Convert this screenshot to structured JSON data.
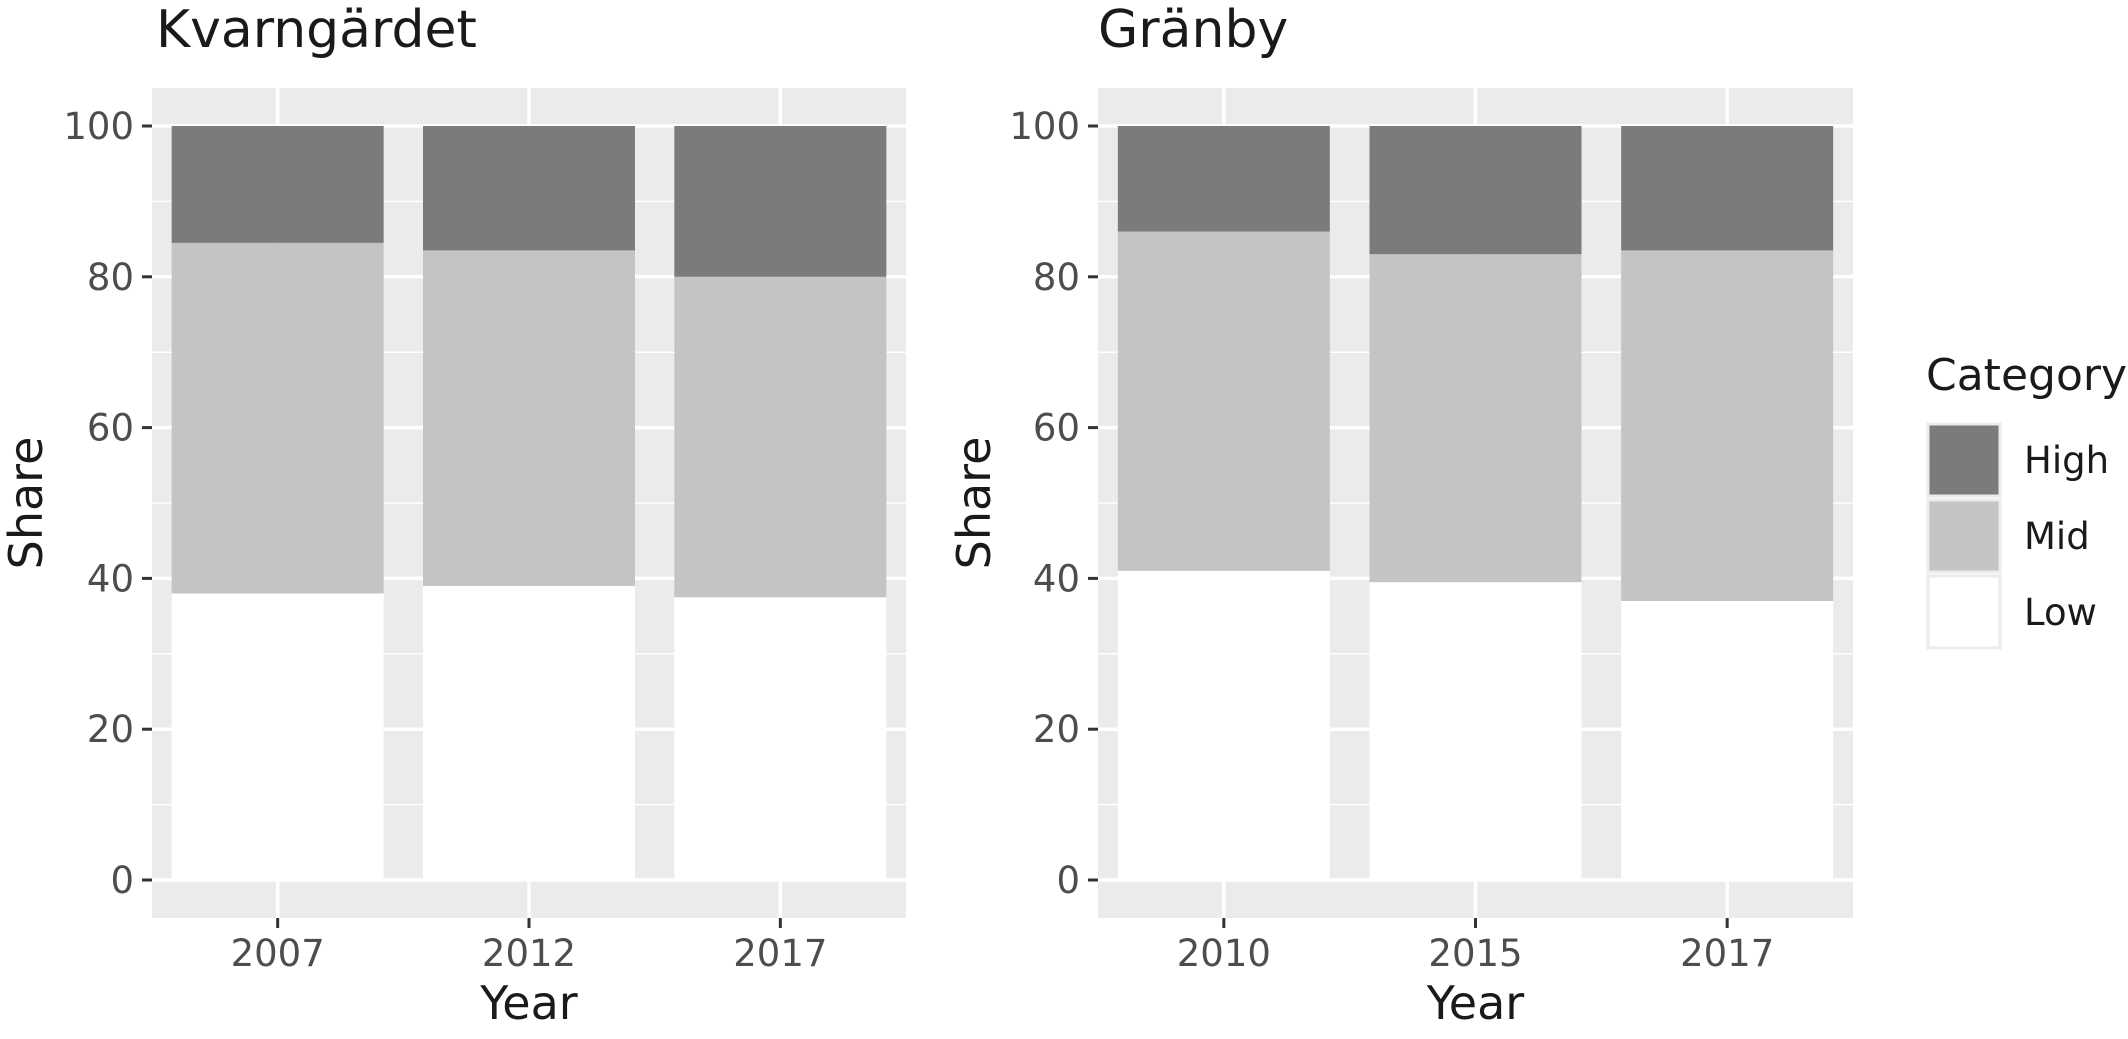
{
  "chart_data": [
    {
      "type": "bar",
      "stacked": true,
      "title": "Kvarngärdet",
      "xlabel": "Year",
      "ylabel": "Share",
      "categories": [
        "2007",
        "2012",
        "2017"
      ],
      "ylim": [
        0,
        100
      ],
      "yticks": [
        "0",
        "20",
        "40",
        "60",
        "80",
        "100"
      ],
      "series": [
        {
          "name": "Low",
          "values": [
            38,
            39,
            37.5
          ]
        },
        {
          "name": "Mid",
          "values": [
            46.5,
            44.5,
            42.5
          ]
        },
        {
          "name": "High",
          "values": [
            15.5,
            16.5,
            20
          ]
        }
      ]
    },
    {
      "type": "bar",
      "stacked": true,
      "title": "Gränby",
      "xlabel": "Year",
      "ylabel": "Share",
      "categories": [
        "2010",
        "2015",
        "2017"
      ],
      "ylim": [
        0,
        100
      ],
      "yticks": [
        "0",
        "20",
        "40",
        "60",
        "80",
        "100"
      ],
      "series": [
        {
          "name": "Low",
          "values": [
            41,
            39.5,
            37
          ]
        },
        {
          "name": "Mid",
          "values": [
            45,
            43.5,
            46.5
          ]
        },
        {
          "name": "High",
          "values": [
            14,
            17,
            16.5
          ]
        }
      ]
    }
  ],
  "legend": {
    "title": "Category",
    "placement": "right",
    "items": [
      {
        "label": "High",
        "color": "#7b7b7b"
      },
      {
        "label": "Mid",
        "color": "#c4c4c4"
      },
      {
        "label": "Low",
        "color": "#ffffff"
      }
    ]
  },
  "colors": {
    "High": "#7b7b7b",
    "Mid": "#c4c4c4",
    "Low": "#ffffff",
    "panel_background": "#ebebeb",
    "grid": "#ffffff"
  }
}
